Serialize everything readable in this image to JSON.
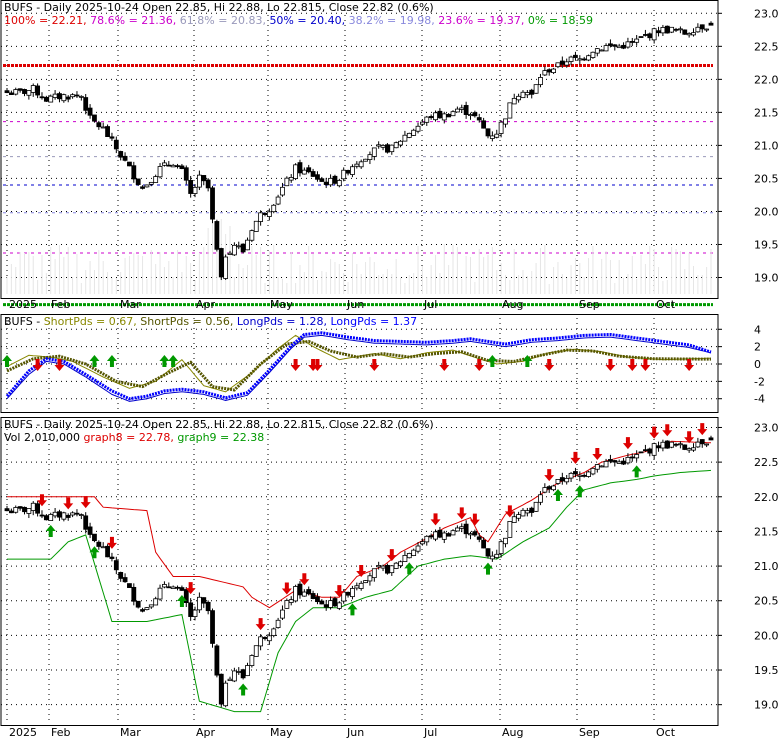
{
  "colors": {
    "up": "#ffffff",
    "down": "#000000",
    "frame": "#000000",
    "fib100": "#dd0000",
    "fib786": "#cc00cc",
    "fib618": "#9999bb",
    "fib50": "#0000cc",
    "fib382": "#8888dd",
    "fib236": "#cc00cc",
    "fib0": "#009900",
    "short1": "#888800",
    "short2": "#555500",
    "long1": "#0000cc",
    "long2": "#0000ff",
    "graph8": "#dd0000",
    "graph9": "#009900",
    "arrowUp": "#009900",
    "arrowDown": "#dd0000"
  },
  "panel1": {
    "legend": [
      {
        "text": "BUFS - Daily 2025-10-24 Open 22.85, Hi 22.88, Lo 22.815, Close 22.82 (0.6%)",
        "color": "#000000"
      },
      {
        "text": "100% = 22.21, ",
        "color": "#dd0000"
      },
      {
        "text": "78.6% = 21.36, ",
        "color": "#cc00cc"
      },
      {
        "text": "61.8% = 20.83, ",
        "color": "#9999bb"
      },
      {
        "text": "50% = 20.40, ",
        "color": "#0000cc"
      },
      {
        "text": "38.2% = 19.98, ",
        "color": "#8888dd"
      },
      {
        "text": "23.6% = 19.37, ",
        "color": "#cc00cc"
      },
      {
        "text": "0% = 18.59",
        "color": "#009900"
      }
    ],
    "y_ticks": [
      "23.0",
      "22.5",
      "22.0",
      "21.5",
      "21.0",
      "20.5",
      "20.0",
      "19.5",
      "19.0"
    ],
    "x_labels": [
      "2025",
      "Feb",
      "Mar",
      "Apr",
      "May",
      "Jun",
      "Jul",
      "Aug",
      "Sep",
      "Oct"
    ]
  },
  "panel2": {
    "legend": [
      {
        "text": "BUFS - ",
        "color": "#000000"
      },
      {
        "text": "ShortPds = 0.67, ",
        "color": "#888800"
      },
      {
        "text": "ShortPds = 0.56, ",
        "color": "#555500"
      },
      {
        "text": "LongPds = 1.28, ",
        "color": "#0000cc"
      },
      {
        "text": "LongPds = 1.37",
        "color": "#0000ff"
      }
    ],
    "y_ticks": [
      "4",
      "2",
      "0",
      "-2",
      "-4"
    ]
  },
  "panel3": {
    "legend1": [
      {
        "text": "BUFS - Daily 2025-10-24 Open 22.85, Hi 22.88, Lo 22.815, Close 22.82 (0.6%)",
        "color": "#000000"
      }
    ],
    "legend2": [
      {
        "text": "Vol 2,010,000 ",
        "color": "#000000"
      },
      {
        "text": "graph8 = 22.78, ",
        "color": "#dd0000"
      },
      {
        "text": "graph9 = 22.38",
        "color": "#009900"
      }
    ],
    "y_ticks": [
      "23.0",
      "22.5",
      "22.0",
      "21.5",
      "21.0",
      "20.5",
      "20.0",
      "19.5",
      "19.0"
    ],
    "x_labels": [
      "2025",
      "Feb",
      "Mar",
      "Apr",
      "May",
      "Jun",
      "Jul",
      "Aug",
      "Sep",
      "Oct"
    ]
  },
  "chart_data": {
    "type": "candlestick",
    "ticker": "BUFS",
    "interval": "Daily",
    "last": {
      "date": "2025-10-24",
      "open": 22.85,
      "high": 22.88,
      "low": 22.815,
      "close": 22.82,
      "change_pct": 0.6,
      "volume": 2010000
    },
    "ylim": [
      18.75,
      23.05
    ],
    "x_month_labels": [
      "2025",
      "Feb",
      "Mar",
      "Apr",
      "May",
      "Jun",
      "Jul",
      "Aug",
      "Sep",
      "Oct"
    ],
    "close_anchors": [
      [
        0,
        21.8
      ],
      [
        3,
        21.8
      ],
      [
        6,
        21.85
      ],
      [
        9,
        21.7
      ],
      [
        13,
        21.75
      ],
      [
        17,
        21.75
      ],
      [
        19,
        21.4
      ],
      [
        22,
        21.25
      ],
      [
        24,
        21.05
      ],
      [
        27,
        20.75
      ],
      [
        29,
        20.55
      ],
      [
        31,
        20.35
      ],
      [
        33,
        20.5
      ],
      [
        35,
        20.65
      ],
      [
        38,
        20.75
      ],
      [
        40,
        20.6
      ],
      [
        42,
        20.25
      ],
      [
        44,
        20.5
      ],
      [
        46,
        20.35
      ],
      [
        47,
        19.85
      ],
      [
        49,
        18.95
      ],
      [
        50,
        19.35
      ],
      [
        52,
        19.5
      ],
      [
        54,
        19.4
      ],
      [
        56,
        19.75
      ],
      [
        58,
        19.95
      ],
      [
        60,
        20.05
      ],
      [
        62,
        20.25
      ],
      [
        64,
        20.45
      ],
      [
        66,
        20.65
      ],
      [
        68,
        20.6
      ],
      [
        70,
        20.55
      ],
      [
        72,
        20.45
      ],
      [
        74,
        20.45
      ],
      [
        76,
        20.5
      ],
      [
        79,
        20.7
      ],
      [
        82,
        20.85
      ],
      [
        85,
        20.95
      ],
      [
        88,
        20.95
      ],
      [
        91,
        21.15
      ],
      [
        94,
        21.3
      ],
      [
        97,
        21.45
      ],
      [
        100,
        21.45
      ],
      [
        103,
        21.55
      ],
      [
        106,
        21.5
      ],
      [
        108,
        21.35
      ],
      [
        110,
        21.15
      ],
      [
        112,
        21.2
      ],
      [
        114,
        21.45
      ],
      [
        116,
        21.75
      ],
      [
        118,
        21.85
      ],
      [
        120,
        21.75
      ],
      [
        122,
        22.05
      ],
      [
        124,
        22.15
      ],
      [
        126,
        22.2
      ],
      [
        128,
        22.3
      ],
      [
        131,
        22.3
      ],
      [
        134,
        22.45
      ],
      [
        137,
        22.5
      ],
      [
        140,
        22.5
      ],
      [
        143,
        22.55
      ],
      [
        146,
        22.65
      ],
      [
        149,
        22.75
      ],
      [
        152,
        22.75
      ],
      [
        155,
        22.7
      ],
      [
        158,
        22.8
      ],
      [
        161,
        22.82
      ]
    ],
    "fibonacci": [
      {
        "level": "100%",
        "value": 22.21
      },
      {
        "level": "78.6%",
        "value": 21.36
      },
      {
        "level": "61.8%",
        "value": 20.83
      },
      {
        "level": "50%",
        "value": 20.4
      },
      {
        "level": "38.2%",
        "value": 19.98
      },
      {
        "level": "23.6%",
        "value": 19.37
      },
      {
        "level": "0%",
        "value": 18.59
      }
    ],
    "oscillator": {
      "ylim": [
        -5.3,
        5.3
      ],
      "series": [
        {
          "name": "ShortPds",
          "last": 0.67,
          "anchors": [
            [
              0,
              -0.3
            ],
            [
              5,
              1.0
            ],
            [
              10,
              0.8
            ],
            [
              15,
              0.3
            ],
            [
              22,
              -1.5
            ],
            [
              28,
              -2.8
            ],
            [
              34,
              -2.0
            ],
            [
              40,
              0.5
            ],
            [
              45,
              -2.5
            ],
            [
              50,
              -3.2
            ],
            [
              56,
              -1.0
            ],
            [
              62,
              1.8
            ],
            [
              66,
              3.3
            ],
            [
              70,
              2.0
            ],
            [
              76,
              0.5
            ],
            [
              84,
              1.2
            ],
            [
              90,
              0.6
            ],
            [
              96,
              1.3
            ],
            [
              102,
              1.6
            ],
            [
              108,
              0.6
            ],
            [
              112,
              0.0
            ],
            [
              118,
              0.3
            ],
            [
              124,
              1.3
            ],
            [
              130,
              1.7
            ],
            [
              136,
              1.4
            ],
            [
              142,
              0.8
            ],
            [
              150,
              0.5
            ],
            [
              161,
              0.67
            ]
          ]
        },
        {
          "name": "ShortPds",
          "last": 0.56,
          "anchors": [
            [
              0,
              -0.8
            ],
            [
              6,
              0.6
            ],
            [
              12,
              0.9
            ],
            [
              18,
              0.0
            ],
            [
              25,
              -2.0
            ],
            [
              31,
              -2.6
            ],
            [
              37,
              -1.0
            ],
            [
              42,
              0.2
            ],
            [
              47,
              -2.6
            ],
            [
              52,
              -3.0
            ],
            [
              58,
              0.0
            ],
            [
              64,
              2.3
            ],
            [
              69,
              2.6
            ],
            [
              74,
              1.5
            ],
            [
              80,
              0.8
            ],
            [
              86,
              1.2
            ],
            [
              92,
              0.8
            ],
            [
              98,
              1.2
            ],
            [
              104,
              1.4
            ],
            [
              110,
              0.4
            ],
            [
              116,
              0.3
            ],
            [
              122,
              1.0
            ],
            [
              128,
              1.6
            ],
            [
              134,
              1.5
            ],
            [
              140,
              0.9
            ],
            [
              148,
              0.6
            ],
            [
              161,
              0.56
            ]
          ]
        },
        {
          "name": "LongPds",
          "last": 1.28,
          "anchors": [
            [
              0,
              -4.0
            ],
            [
              5,
              -1.2
            ],
            [
              9,
              0.3
            ],
            [
              13,
              0.0
            ],
            [
              18,
              -1.5
            ],
            [
              24,
              -3.5
            ],
            [
              28,
              -4.3
            ],
            [
              32,
              -4.0
            ],
            [
              36,
              -3.4
            ],
            [
              40,
              -3.2
            ],
            [
              45,
              -3.5
            ],
            [
              50,
              -4.2
            ],
            [
              55,
              -3.6
            ],
            [
              60,
              -1.0
            ],
            [
              65,
              1.8
            ],
            [
              68,
              3.1
            ],
            [
              72,
              3.3
            ],
            [
              78,
              2.8
            ],
            [
              84,
              2.4
            ],
            [
              90,
              2.3
            ],
            [
              96,
              2.2
            ],
            [
              102,
              2.4
            ],
            [
              106,
              2.6
            ],
            [
              110,
              2.3
            ],
            [
              114,
              2.0
            ],
            [
              120,
              2.5
            ],
            [
              126,
              2.7
            ],
            [
              132,
              3.0
            ],
            [
              138,
              3.1
            ],
            [
              144,
              2.7
            ],
            [
              150,
              2.3
            ],
            [
              156,
              1.9
            ],
            [
              161,
              1.28
            ]
          ]
        },
        {
          "name": "LongPds",
          "last": 1.37,
          "anchors": [
            [
              0,
              -3.7
            ],
            [
              5,
              -0.8
            ],
            [
              9,
              0.6
            ],
            [
              13,
              0.3
            ],
            [
              18,
              -1.2
            ],
            [
              24,
              -3.1
            ],
            [
              28,
              -4.0
            ],
            [
              32,
              -3.7
            ],
            [
              36,
              -3.1
            ],
            [
              40,
              -2.9
            ],
            [
              45,
              -3.2
            ],
            [
              50,
              -3.9
            ],
            [
              55,
              -3.3
            ],
            [
              60,
              -0.7
            ],
            [
              65,
              2.1
            ],
            [
              68,
              3.4
            ],
            [
              72,
              3.6
            ],
            [
              78,
              3.1
            ],
            [
              84,
              2.7
            ],
            [
              90,
              2.6
            ],
            [
              96,
              2.5
            ],
            [
              102,
              2.7
            ],
            [
              106,
              2.9
            ],
            [
              110,
              2.6
            ],
            [
              114,
              2.3
            ],
            [
              120,
              2.8
            ],
            [
              126,
              3.0
            ],
            [
              132,
              3.3
            ],
            [
              138,
              3.4
            ],
            [
              144,
              3.0
            ],
            [
              150,
              2.6
            ],
            [
              156,
              2.2
            ],
            [
              161,
              1.37
            ]
          ]
        }
      ],
      "up_arrow_days": [
        0,
        20,
        24,
        36,
        38,
        111,
        119
      ],
      "down_arrow_days": [
        7,
        12,
        66,
        70,
        71,
        84,
        100,
        108,
        124,
        138,
        143,
        146,
        156
      ]
    },
    "graph8": {
      "name": "graph8",
      "last": 22.78,
      "anchors": [
        [
          0,
          22.0
        ],
        [
          20,
          22.0
        ],
        [
          22,
          21.85
        ],
        [
          32,
          21.8
        ],
        [
          34,
          21.2
        ],
        [
          38,
          20.85
        ],
        [
          44,
          20.85
        ],
        [
          54,
          20.7
        ],
        [
          56,
          20.55
        ],
        [
          60,
          20.4
        ],
        [
          66,
          20.65
        ],
        [
          72,
          20.55
        ],
        [
          76,
          20.55
        ],
        [
          80,
          20.85
        ],
        [
          86,
          21.0
        ],
        [
          90,
          21.2
        ],
        [
          96,
          21.4
        ],
        [
          100,
          21.55
        ],
        [
          106,
          21.7
        ],
        [
          108,
          21.45
        ],
        [
          110,
          21.35
        ],
        [
          114,
          21.75
        ],
        [
          120,
          21.95
        ],
        [
          126,
          22.2
        ],
        [
          132,
          22.35
        ],
        [
          136,
          22.5
        ],
        [
          142,
          22.6
        ],
        [
          146,
          22.65
        ],
        [
          152,
          22.8
        ],
        [
          161,
          22.78
        ]
      ]
    },
    "graph9": {
      "name": "graph9",
      "last": 22.38,
      "anchors": [
        [
          0,
          21.1
        ],
        [
          10,
          21.1
        ],
        [
          14,
          21.35
        ],
        [
          18,
          21.45
        ],
        [
          24,
          20.2
        ],
        [
          32,
          20.2
        ],
        [
          40,
          20.3
        ],
        [
          44,
          19.05
        ],
        [
          52,
          18.9
        ],
        [
          58,
          18.9
        ],
        [
          62,
          19.75
        ],
        [
          66,
          20.2
        ],
        [
          70,
          20.4
        ],
        [
          76,
          20.4
        ],
        [
          82,
          20.55
        ],
        [
          88,
          20.65
        ],
        [
          94,
          21.0
        ],
        [
          100,
          21.1
        ],
        [
          106,
          21.15
        ],
        [
          112,
          21.1
        ],
        [
          118,
          21.35
        ],
        [
          124,
          21.55
        ],
        [
          128,
          21.85
        ],
        [
          132,
          22.1
        ],
        [
          138,
          22.2
        ],
        [
          144,
          22.25
        ],
        [
          148,
          22.3
        ],
        [
          154,
          22.35
        ],
        [
          161,
          22.38
        ]
      ]
    },
    "arrows_down_days": [
      8,
      14,
      18,
      24,
      42,
      58,
      64,
      68,
      76,
      81,
      88,
      98,
      104,
      107,
      115,
      124,
      130,
      135,
      142,
      148,
      151,
      156,
      159
    ],
    "arrows_up_days": [
      10,
      20,
      40,
      54,
      79,
      92,
      110,
      126,
      131,
      144
    ]
  }
}
